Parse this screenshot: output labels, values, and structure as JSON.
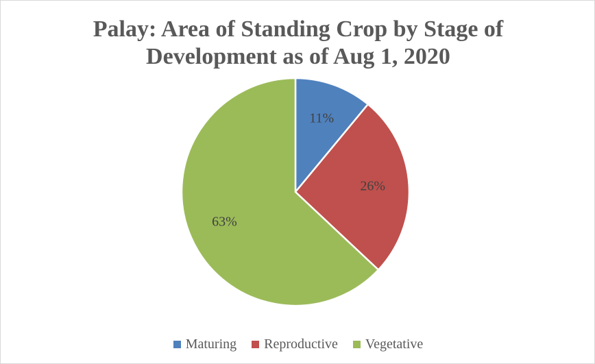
{
  "chart_data": {
    "type": "pie",
    "title": "Palay: Area of Standing Crop by Stage of Development as of Aug 1, 2020",
    "categories": [
      "Maturing",
      "Reproductive",
      "Vegetative"
    ],
    "values": [
      11,
      26,
      63
    ],
    "value_labels": [
      "11%",
      "26%",
      "63%"
    ],
    "colors": [
      "#4f81bd",
      "#c0504d",
      "#9bbb59"
    ],
    "legend": "bottom"
  }
}
